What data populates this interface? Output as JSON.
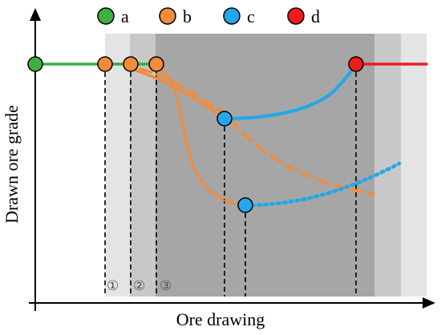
{
  "legend": [
    {
      "key": "a",
      "label": "a",
      "color": "#3cb043"
    },
    {
      "key": "b",
      "label": "b",
      "color": "#f58a3a"
    },
    {
      "key": "c",
      "label": "c",
      "color": "#21a8e8"
    },
    {
      "key": "d",
      "label": "d",
      "color": "#ee1c1c"
    }
  ],
  "axes": {
    "x_label": "Ore drawing",
    "y_label": "Drawn ore grade"
  },
  "stage_markers": [
    "①",
    "②",
    "③"
  ],
  "colors": {
    "green": "#3cb043",
    "orange": "#f58a3a",
    "blue": "#21a8e8",
    "red": "#ee1c1c",
    "shade_light": "#e4e4e4",
    "shade_mid": "#c8c8c8",
    "shade_dark": "#a6a6a6"
  }
}
